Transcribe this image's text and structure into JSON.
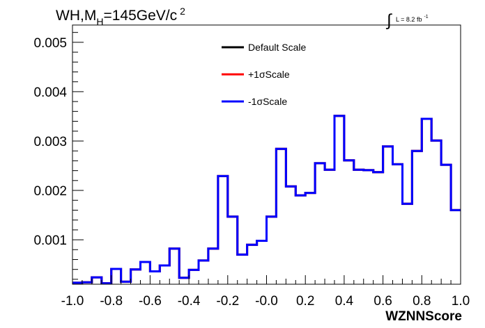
{
  "chart_data": {
    "type": "line",
    "title_main": "WH,M",
    "title_sub": "H",
    "title_rest": "=145GeV/c",
    "title_sup": "2",
    "lumi_prefix": "L = 8.2 fb",
    "lumi_sup": "-1",
    "integral_symbol": "∫",
    "xlabel": "WZNNScore",
    "xlim": [
      -1.0,
      1.0
    ],
    "ylim": [
      0.0001,
      0.00535
    ],
    "x_ticks": [
      {
        "v": -1.0,
        "label": "-1.0"
      },
      {
        "v": -0.8,
        "label": "-0.8"
      },
      {
        "v": -0.6,
        "label": "-0.6"
      },
      {
        "v": -0.4,
        "label": "-0.4"
      },
      {
        "v": -0.2,
        "label": "-0.2"
      },
      {
        "v": 0.0,
        "label": "-0.0"
      },
      {
        "v": 0.2,
        "label": "0.2"
      },
      {
        "v": 0.4,
        "label": "0.4"
      },
      {
        "v": 0.6,
        "label": "0.6"
      },
      {
        "v": 0.8,
        "label": "0.8"
      },
      {
        "v": 1.0,
        "label": "1.0"
      }
    ],
    "y_ticks": [
      {
        "v": 0.001,
        "label": "0.001"
      },
      {
        "v": 0.002,
        "label": "0.002"
      },
      {
        "v": 0.003,
        "label": "0.003"
      },
      {
        "v": 0.004,
        "label": "0.004"
      },
      {
        "v": 0.005,
        "label": "0.005"
      }
    ],
    "bin_edges": [
      -1.0,
      -0.95,
      -0.9,
      -0.85,
      -0.8,
      -0.75,
      -0.7,
      -0.65,
      -0.6,
      -0.55,
      -0.5,
      -0.45,
      -0.4,
      -0.35,
      -0.3,
      -0.25,
      -0.2,
      -0.15,
      -0.1,
      -0.05,
      0.0,
      0.05,
      0.1,
      0.15,
      0.2,
      0.25,
      0.3,
      0.35,
      0.4,
      0.45,
      0.5,
      0.55,
      0.6,
      0.65,
      0.7,
      0.75,
      0.8,
      0.85,
      0.9,
      0.95,
      1.0
    ],
    "series": [
      {
        "name": "Default Scale",
        "color": "#000000",
        "values": [
          0.00013,
          0.00014,
          0.00024,
          0.00012,
          0.00041,
          0.00015,
          0.0004,
          0.00055,
          0.00036,
          0.00048,
          0.00082,
          0.00023,
          0.00039,
          0.00058,
          0.00082,
          0.00229,
          0.00147,
          0.0007,
          0.0009,
          0.00098,
          0.00147,
          0.00284,
          0.00208,
          0.0019,
          0.00195,
          0.00255,
          0.00242,
          0.00351,
          0.00261,
          0.00242,
          0.00241,
          0.00237,
          0.00289,
          0.00253,
          0.00173,
          0.0028,
          0.00345,
          0.00301,
          0.00252,
          0.0016
        ]
      },
      {
        "name": "+1σScale",
        "color": "#ff0000",
        "values": [
          0.00013,
          0.00014,
          0.00024,
          0.00012,
          0.00041,
          0.00015,
          0.0004,
          0.00055,
          0.00036,
          0.00048,
          0.00082,
          0.00023,
          0.00039,
          0.00058,
          0.00082,
          0.00229,
          0.00147,
          0.0007,
          0.0009,
          0.00098,
          0.00147,
          0.00284,
          0.00208,
          0.0019,
          0.00195,
          0.00255,
          0.00242,
          0.00351,
          0.00261,
          0.00242,
          0.00241,
          0.00237,
          0.00289,
          0.00253,
          0.00173,
          0.0028,
          0.00345,
          0.00301,
          0.00252,
          0.0016
        ]
      },
      {
        "name": "-1σScale",
        "color": "#0000ff",
        "values": [
          0.00013,
          0.00014,
          0.00024,
          0.00012,
          0.00041,
          0.00015,
          0.0004,
          0.00055,
          0.00036,
          0.00048,
          0.00082,
          0.00023,
          0.00039,
          0.00058,
          0.00082,
          0.00229,
          0.00147,
          0.0007,
          0.0009,
          0.00098,
          0.00147,
          0.00284,
          0.00208,
          0.0019,
          0.00195,
          0.00255,
          0.00242,
          0.00351,
          0.00261,
          0.00242,
          0.00241,
          0.00237,
          0.00289,
          0.00253,
          0.00173,
          0.0028,
          0.00345,
          0.00301,
          0.00252,
          0.0016
        ]
      }
    ],
    "legend_position": "top-center",
    "grid": false
  }
}
